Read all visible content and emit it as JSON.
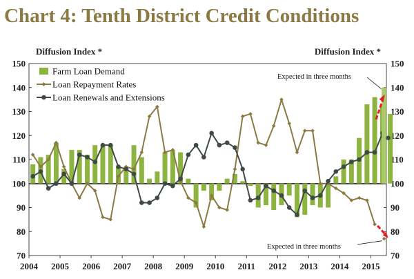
{
  "chart_data": {
    "type": "bar",
    "title": "Chart 4: Tenth District Credit Conditions",
    "ylabel_left": "Diffusion Index *",
    "ylabel_right": "Diffusion Index *",
    "ylim": [
      70,
      150
    ],
    "baseline": 100,
    "yticks": [
      70,
      80,
      90,
      100,
      110,
      120,
      130,
      140,
      150
    ],
    "xlabels": [
      "2004",
      "2005",
      "2006",
      "2007",
      "2008",
      "2009",
      "2010",
      "2011",
      "2012",
      "2013",
      "2014",
      "2015"
    ],
    "quarters_start": "2004Q1",
    "series": [
      {
        "name": "Farm Loan Demand",
        "kind": "bar",
        "color": "#8db340",
        "values": [
          108,
          111,
          112,
          117,
          106,
          114,
          114,
          112,
          116,
          116,
          116,
          107,
          107,
          116,
          111,
          102,
          105,
          113,
          114,
          113,
          102,
          90,
          97,
          93,
          97,
          102,
          104,
          101,
          99,
          90,
          91,
          89,
          91,
          95,
          86,
          87,
          91,
          90,
          90,
          103,
          110,
          110,
          119,
          133,
          136,
          132,
          129
        ]
      },
      {
        "name": "Loan Repayment Rates",
        "kind": "line",
        "color": "#8b7a44",
        "values": [
          112,
          107,
          110,
          117,
          107,
          100,
          94,
          100,
          97,
          86,
          85,
          103,
          107,
          106,
          113,
          128,
          132,
          113,
          114,
          101,
          94,
          92,
          82,
          95,
          90,
          89,
          106,
          128,
          129,
          117,
          116,
          124,
          135,
          125,
          113,
          122,
          122,
          100,
          100,
          98,
          96,
          93,
          94,
          93,
          83
        ]
      },
      {
        "name": "Loan Renewals and Extensions",
        "kind": "line",
        "color": "#3f4a46",
        "values": [
          103,
          105,
          98,
          100,
          104,
          100,
          112,
          111,
          109,
          116,
          116,
          107,
          106,
          104,
          92,
          92,
          94,
          100,
          99,
          102,
          112,
          116,
          111,
          121,
          116,
          117,
          115,
          106,
          93,
          94,
          99,
          97,
          95,
          90,
          87,
          97,
          94,
          95,
          101,
          105,
          107,
          109,
          110,
          113,
          113,
          121
        ]
      }
    ],
    "expected": {
      "label": "Expected in three months",
      "farm_loan_demand": 140,
      "loan_repayment_rates": 77,
      "loan_renewals_and_extensions": 119
    }
  }
}
